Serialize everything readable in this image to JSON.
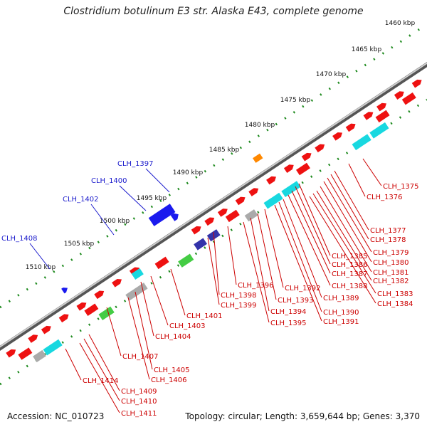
{
  "title": "Clostridium botulinum E3 str. Alaska E43, complete genome",
  "footer": {
    "accession": "Accession: NC_010723",
    "summary": "Topology: circular; Length: 3,659,644 bp; Genes: 3,370"
  },
  "colors": {
    "backbone": "#7a7a7a",
    "gene_label": "#cc0000",
    "highlight_label": "#1a1acc",
    "tick_dots": "#1e8a1e",
    "feature_red": "#ee1111",
    "feature_cyan": "#18d8e0",
    "feature_blue": "#1a1aee",
    "feature_green": "#44cc44",
    "feature_gray": "#aaaaaa"
  },
  "scale_labels": [
    "1460 kbp",
    "1465 kbp",
    "1470 kbp",
    "1475 kbp",
    "1480 kbp",
    "1485 kbp",
    "1490 kbp",
    "1495 kbp",
    "1500 kbp",
    "1505 kbp",
    "1510 kbp"
  ],
  "gene_labels_right": [
    "CLH_1375",
    "CLH_1376",
    "CLH_1377",
    "CLH_1378",
    "CLH_1379",
    "CLH_1380",
    "CLH_1381",
    "CLH_1382",
    "CLH_1383",
    "CLH_1384",
    "CLH_1385",
    "CLH_1386",
    "CLH_1387",
    "CLH_1388",
    "CLH_1389",
    "CLH_1390",
    "CLH_1391",
    "CLH_1392",
    "CLH_1393",
    "CLH_1394",
    "CLH_1395",
    "CLH_1396",
    "CLH_1398",
    "CLH_1399",
    "CLH_1401",
    "CLH_1403",
    "CLH_1404",
    "CLH_1405",
    "CLH_1406",
    "CLH_1407",
    "CLH_1409",
    "CLH_1410",
    "CLH_1411",
    "CLH_1414"
  ],
  "gene_labels_highlight": [
    "CLH_1397",
    "CLH_1400",
    "CLH_1402",
    "CLH_1408"
  ]
}
